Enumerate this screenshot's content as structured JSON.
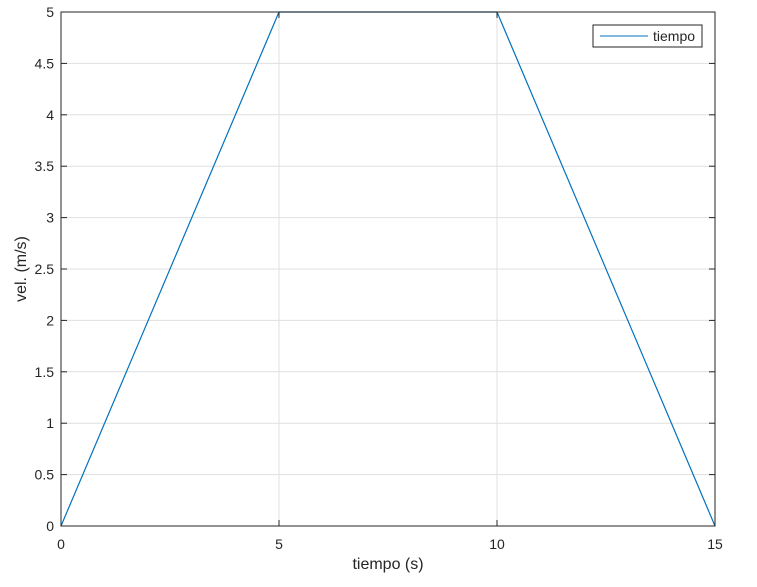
{
  "chart_data": {
    "type": "line",
    "title": "",
    "xlabel": "tiempo (s)",
    "ylabel": "vel. (m/s)",
    "xlim": [
      0,
      15
    ],
    "ylim": [
      0,
      5
    ],
    "xticks": [
      0,
      5,
      10,
      15
    ],
    "xtick_labels": [
      "0",
      "5",
      "10",
      "15"
    ],
    "yticks": [
      0,
      0.5,
      1,
      1.5,
      2,
      2.5,
      3,
      3.5,
      4,
      4.5,
      5
    ],
    "ytick_labels": [
      "0",
      "0.5",
      "1",
      "1.5",
      "2",
      "2.5",
      "3",
      "3.5",
      "4",
      "4.5",
      "5"
    ],
    "grid": true,
    "legend_position": "top-right",
    "series": [
      {
        "name": "tiempo",
        "color": "#0072BD",
        "x": [
          0,
          5,
          10,
          15
        ],
        "y": [
          0,
          5,
          5,
          0
        ]
      }
    ],
    "colors": {
      "axis": "#262626",
      "grid": "#dfdfdf",
      "background": "#ffffff"
    }
  }
}
